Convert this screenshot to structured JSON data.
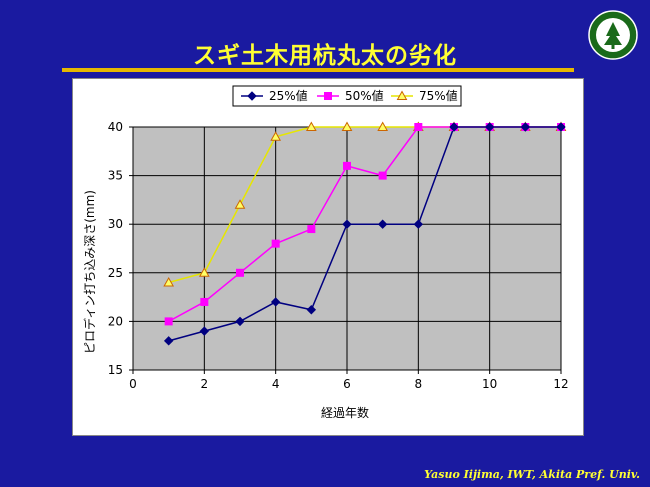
{
  "slide": {
    "title": "スギ土木用杭丸太の劣化",
    "footer": "Yasuo Iijima, IWT, Akita Pref.  Univ."
  },
  "colors": {
    "background": "#1a1aa0",
    "title": "#ffff33",
    "rule": "#e6b800",
    "plot_area": "#c0c0c0",
    "series_25": "#000080",
    "series_50": "#ff00ff",
    "series_75": "#e6e600"
  },
  "chart_data": {
    "type": "line",
    "title": "",
    "xlabel": "経過年数",
    "ylabel": "ピロディン打ち込み深さ(mm)",
    "xlim": [
      0,
      12
    ],
    "ylim": [
      15,
      40
    ],
    "xticks": [
      0,
      2,
      4,
      6,
      8,
      10,
      12
    ],
    "yticks": [
      15,
      20,
      25,
      30,
      35,
      40
    ],
    "grid": true,
    "legend_position": "top",
    "x": [
      1,
      2,
      3,
      4,
      5,
      6,
      7,
      8,
      9,
      10,
      11,
      12
    ],
    "series": [
      {
        "name": "25%値",
        "marker": "diamond",
        "color": "#000080",
        "values": [
          18,
          19,
          20,
          22,
          21.2,
          30,
          30,
          30,
          40,
          40,
          40,
          40
        ]
      },
      {
        "name": "50%値",
        "marker": "square",
        "color": "#ff00ff",
        "values": [
          20,
          22,
          25,
          28,
          29.5,
          36,
          35,
          40,
          40,
          40,
          40,
          40
        ]
      },
      {
        "name": "75%値",
        "marker": "triangle",
        "color": "#e6e600",
        "values": [
          24,
          25,
          32,
          39,
          40,
          40,
          40,
          40,
          40,
          40,
          40,
          40
        ]
      }
    ]
  }
}
